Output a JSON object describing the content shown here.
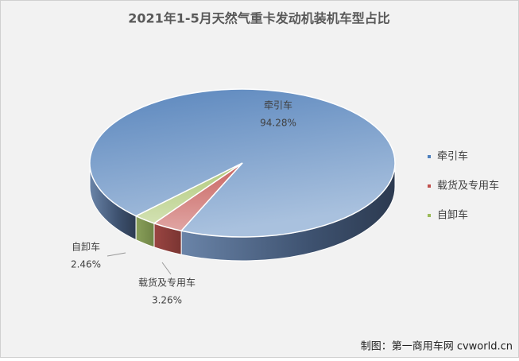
{
  "chart_data": {
    "type": "pie3d",
    "title": "2021年1-5月天然气重卡发动机装机车型占比",
    "categories": [
      "牵引车",
      "载货及专用车",
      "自卸车"
    ],
    "values": [
      94.28,
      3.26,
      2.46
    ],
    "value_labels": [
      "94.28%",
      "3.26%",
      "2.46%"
    ],
    "colors": [
      "#4f81bd",
      "#c0504d",
      "#9bbb59"
    ],
    "legend": "right",
    "source": "制图：第一商用车网 cvworld.cn"
  }
}
